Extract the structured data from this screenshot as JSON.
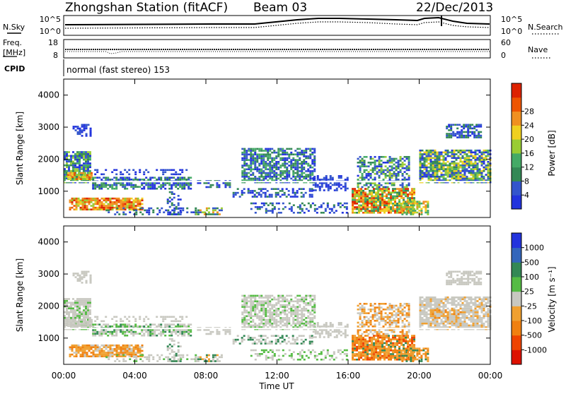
{
  "header": {
    "station": "Zhongshan Station (fitACF)",
    "beam": "Beam 03",
    "date": "22/Dec/2013"
  },
  "noise_panel": {
    "left_label": "N.Sky",
    "right_label": "N.Search",
    "left_ticks": [
      "10^5",
      "10^0"
    ],
    "right_ticks": [
      "10^5",
      "10^0"
    ]
  },
  "freq_panel": {
    "left_label_1": "Freq.",
    "left_label_2": "[MHz]",
    "right_label": "Nave",
    "left_ticks": [
      "18",
      "8"
    ],
    "right_ticks": [
      "60",
      "0"
    ]
  },
  "cpid": {
    "label": "CPID",
    "text": "normal (fast stereo) 153"
  },
  "colors": {
    "power": [
      "#2233dd",
      "#3355cc",
      "#338855",
      "#44aa66",
      "#99cc33",
      "#f0d020",
      "#f09020",
      "#ee5500",
      "#dd2200"
    ],
    "velocity": [
      "#2233dd",
      "#3366bb",
      "#338855",
      "#55bb44",
      "#c8c8c0",
      "#f0a030",
      "#f08010",
      "#ee4400",
      "#dd1100"
    ],
    "ground_scatter": "#c8c8c0"
  },
  "chart_data": [
    {
      "type": "heatmap",
      "name": "power",
      "ylabel": "Slant Range [km]",
      "ylim": [
        180,
        4500
      ],
      "y_ticks": [
        1000,
        2000,
        3000,
        4000
      ],
      "colorbar_label": "Power [dB]",
      "colorbar_ticks": [
        "4",
        "8",
        "12",
        "16",
        "20",
        "24",
        "28"
      ],
      "colorbar_range": [
        0,
        32
      ]
    },
    {
      "type": "heatmap",
      "name": "velocity",
      "ylabel": "Slant Range [km]",
      "ylim": [
        180,
        4500
      ],
      "y_ticks": [
        1000,
        2000,
        3000,
        4000
      ],
      "colorbar_label": "Velocity [m s⁻¹]",
      "colorbar_ticks": [
        "1000",
        "500",
        "100",
        "25",
        "-25",
        "-100",
        "-500",
        "-1000"
      ]
    }
  ],
  "time_axis": {
    "label": "Time UT",
    "ticks": [
      "00:00",
      "04:00",
      "08:00",
      "12:00",
      "16:00",
      "20:00",
      "00:00"
    ]
  }
}
